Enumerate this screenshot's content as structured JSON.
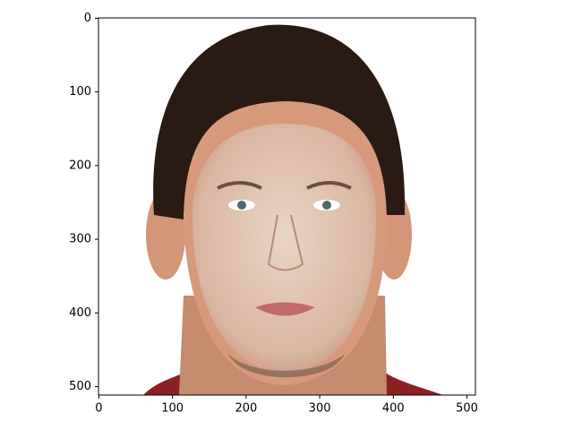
{
  "chart_data": {
    "type": "image",
    "xlim": [
      -0.5,
      511.5
    ],
    "ylim": [
      511.5,
      -0.5
    ],
    "xticks": [
      0,
      100,
      200,
      300,
      400,
      500
    ],
    "yticks": [
      0,
      100,
      200,
      300,
      400,
      500
    ]
  }
}
